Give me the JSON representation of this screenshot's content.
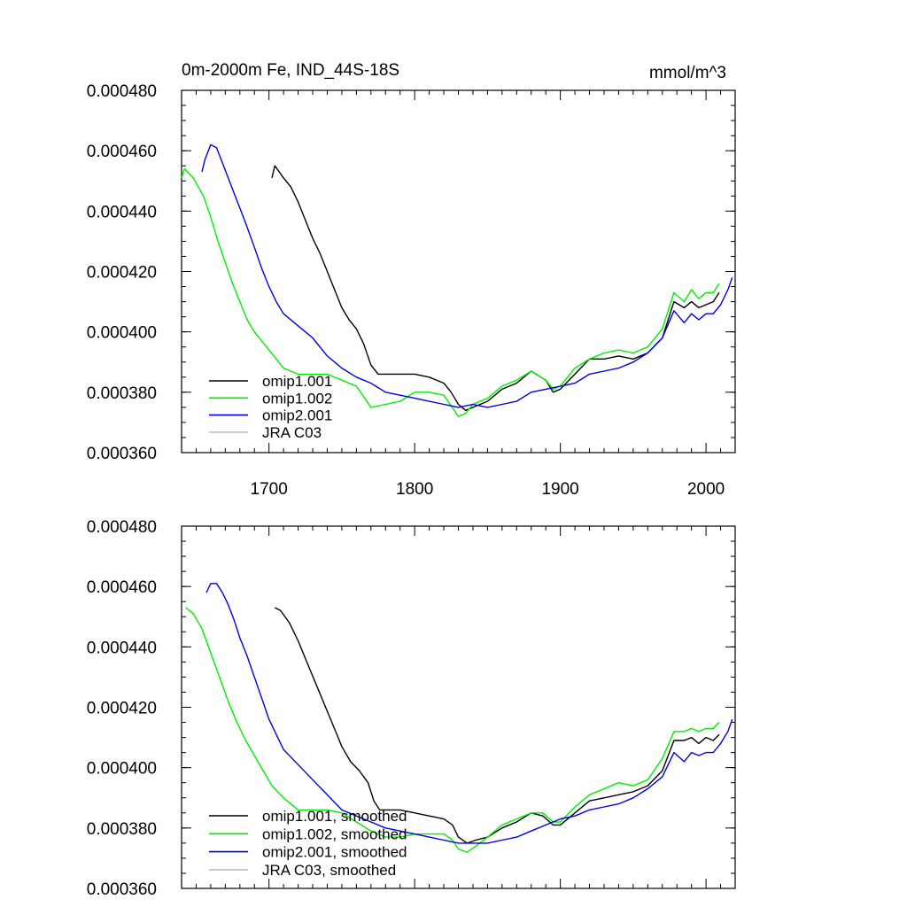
{
  "colors": {
    "omip1_001": "#000000",
    "omip1_002": "#00ee00",
    "omip2_001": "#0000dd",
    "jra_c03": "#bbbbbb"
  },
  "chart_data": [
    {
      "type": "line",
      "title": "0m-2000m Fe, IND_44S-18S",
      "units": "mmol/m^3",
      "xlabel": "",
      "ylabel": "",
      "xlim": [
        1640,
        2020
      ],
      "ylim": [
        0.00036,
        0.00048
      ],
      "yticks": [
        "0.000360",
        "0.000380",
        "0.000400",
        "0.000420",
        "0.000440",
        "0.000460",
        "0.000480"
      ],
      "xticks": [
        "1700",
        "1800",
        "1900",
        "2000"
      ],
      "legend_position": "bottom-left",
      "series": [
        {
          "name": "omip1.001",
          "color_key": "omip1_001",
          "x": [
            1702,
            1704,
            1710,
            1715,
            1720,
            1725,
            1730,
            1735,
            1740,
            1745,
            1750,
            1755,
            1760,
            1765,
            1770,
            1775,
            1780,
            1790,
            1800,
            1810,
            1820,
            1825,
            1830,
            1835,
            1840,
            1850,
            1860,
            1870,
            1880,
            1890,
            1895,
            1900,
            1910,
            1920,
            1930,
            1940,
            1950,
            1960,
            1970,
            1978,
            1985,
            1990,
            1995,
            2000,
            2005,
            2009
          ],
          "y": [
            0.000451,
            0.000455,
            0.000451,
            0.000448,
            0.000443,
            0.000437,
            0.000431,
            0.000426,
            0.00042,
            0.000414,
            0.000408,
            0.000404,
            0.000401,
            0.000396,
            0.000389,
            0.000386,
            0.000386,
            0.000386,
            0.000386,
            0.000385,
            0.000383,
            0.00038,
            0.000376,
            0.000374,
            0.000375,
            0.000377,
            0.000381,
            0.000383,
            0.000387,
            0.000384,
            0.00038,
            0.000381,
            0.000386,
            0.000391,
            0.000391,
            0.000392,
            0.000391,
            0.000393,
            0.000398,
            0.00041,
            0.000408,
            0.00041,
            0.000408,
            0.000409,
            0.00041,
            0.000413
          ]
        },
        {
          "name": "omip1.002",
          "color_key": "omip1_002",
          "x": [
            1640,
            1642,
            1648,
            1655,
            1660,
            1665,
            1670,
            1675,
            1680,
            1685,
            1690,
            1700,
            1710,
            1720,
            1730,
            1740,
            1750,
            1760,
            1770,
            1780,
            1790,
            1800,
            1810,
            1820,
            1830,
            1835,
            1840,
            1850,
            1860,
            1870,
            1880,
            1890,
            1895,
            1900,
            1910,
            1920,
            1930,
            1940,
            1950,
            1960,
            1970,
            1978,
            1985,
            1990,
            1995,
            2000,
            2005,
            2009
          ],
          "y": [
            0.000451,
            0.000454,
            0.000451,
            0.000445,
            0.000438,
            0.00043,
            0.000423,
            0.000416,
            0.00041,
            0.000404,
            0.0004,
            0.000394,
            0.000388,
            0.000386,
            0.000386,
            0.000386,
            0.000384,
            0.000382,
            0.000375,
            0.000376,
            0.000377,
            0.00038,
            0.00038,
            0.000379,
            0.000372,
            0.000373,
            0.000376,
            0.000378,
            0.000382,
            0.000384,
            0.000387,
            0.000384,
            0.000381,
            0.000382,
            0.000388,
            0.000391,
            0.000393,
            0.000394,
            0.000393,
            0.000395,
            0.000401,
            0.000413,
            0.00041,
            0.000414,
            0.000411,
            0.000413,
            0.000413,
            0.000416
          ]
        },
        {
          "name": "omip2.001",
          "color_key": "omip2_001",
          "x": [
            1654,
            1656,
            1660,
            1664,
            1668,
            1672,
            1676,
            1680,
            1684,
            1690,
            1695,
            1700,
            1705,
            1710,
            1720,
            1730,
            1740,
            1750,
            1760,
            1770,
            1780,
            1790,
            1800,
            1810,
            1820,
            1830,
            1840,
            1850,
            1860,
            1870,
            1880,
            1890,
            1900,
            1910,
            1920,
            1930,
            1940,
            1950,
            1960,
            1970,
            1978,
            1985,
            1990,
            1995,
            2000,
            2005,
            2010,
            2015,
            2018
          ],
          "y": [
            0.000453,
            0.000457,
            0.000462,
            0.000461,
            0.000456,
            0.000451,
            0.000446,
            0.000441,
            0.000436,
            0.000428,
            0.000421,
            0.000415,
            0.00041,
            0.000406,
            0.000402,
            0.000398,
            0.000392,
            0.000388,
            0.000385,
            0.000383,
            0.00038,
            0.000379,
            0.000378,
            0.000377,
            0.000376,
            0.000375,
            0.000376,
            0.000375,
            0.000376,
            0.000377,
            0.00038,
            0.000381,
            0.000382,
            0.000383,
            0.000386,
            0.000387,
            0.000388,
            0.00039,
            0.000393,
            0.000398,
            0.000407,
            0.000403,
            0.000406,
            0.000404,
            0.000406,
            0.000406,
            0.000409,
            0.000414,
            0.000418
          ]
        },
        {
          "name": "JRA C03",
          "color_key": "jra_c03",
          "x": [],
          "y": []
        }
      ]
    },
    {
      "type": "line",
      "title": "",
      "xlim": [
        1640,
        2020
      ],
      "ylim": [
        0.00036,
        0.00048
      ],
      "yticks": [
        "0.000360",
        "0.000380",
        "0.000400",
        "0.000420",
        "0.000440",
        "0.000460",
        "0.000480"
      ],
      "legend_position": "bottom-left",
      "series": [
        {
          "name": "omip1.001, smoothed",
          "color_key": "omip1_001",
          "x": [
            1704,
            1708,
            1714,
            1720,
            1726,
            1732,
            1738,
            1744,
            1750,
            1756,
            1762,
            1768,
            1772,
            1776,
            1782,
            1790,
            1800,
            1810,
            1820,
            1826,
            1830,
            1836,
            1842,
            1850,
            1860,
            1870,
            1880,
            1888,
            1895,
            1900,
            1910,
            1920,
            1930,
            1940,
            1950,
            1960,
            1970,
            1978,
            1985,
            1990,
            1995,
            2000,
            2005,
            2009
          ],
          "y": [
            0.000453,
            0.000452,
            0.000448,
            0.000442,
            0.000435,
            0.000428,
            0.000421,
            0.000414,
            0.000407,
            0.000402,
            0.000399,
            0.000395,
            0.000389,
            0.000386,
            0.000386,
            0.000386,
            0.000385,
            0.000384,
            0.000383,
            0.000381,
            0.000377,
            0.000375,
            0.000376,
            0.000377,
            0.00038,
            0.000382,
            0.000385,
            0.000384,
            0.000381,
            0.000381,
            0.000385,
            0.000389,
            0.00039,
            0.000391,
            0.000392,
            0.000394,
            0.000399,
            0.000409,
            0.000409,
            0.00041,
            0.000408,
            0.00041,
            0.000409,
            0.000411
          ]
        },
        {
          "name": "omip1.002, smoothed",
          "color_key": "omip1_002",
          "x": [
            1643,
            1648,
            1654,
            1660,
            1666,
            1672,
            1678,
            1684,
            1690,
            1696,
            1702,
            1710,
            1720,
            1730,
            1740,
            1750,
            1760,
            1770,
            1780,
            1790,
            1800,
            1810,
            1820,
            1826,
            1830,
            1836,
            1842,
            1850,
            1860,
            1870,
            1880,
            1888,
            1895,
            1900,
            1910,
            1920,
            1930,
            1940,
            1950,
            1960,
            1970,
            1978,
            1985,
            1990,
            1995,
            2000,
            2005,
            2009
          ],
          "y": [
            0.000453,
            0.000451,
            0.000446,
            0.000438,
            0.00043,
            0.000422,
            0.000415,
            0.000409,
            0.000404,
            0.000399,
            0.000394,
            0.00039,
            0.000386,
            0.000386,
            0.000386,
            0.000385,
            0.000382,
            0.000379,
            0.000377,
            0.000377,
            0.000378,
            0.000378,
            0.000378,
            0.000376,
            0.000373,
            0.000372,
            0.000374,
            0.000377,
            0.000381,
            0.000383,
            0.000385,
            0.000385,
            0.000382,
            0.000382,
            0.000387,
            0.000391,
            0.000393,
            0.000395,
            0.000394,
            0.000396,
            0.000403,
            0.000412,
            0.000412,
            0.000413,
            0.000412,
            0.000413,
            0.000413,
            0.000415
          ]
        },
        {
          "name": "omip2.001, smoothed",
          "color_key": "omip2_001",
          "x": [
            1657,
            1660,
            1664,
            1668,
            1672,
            1676,
            1680,
            1685,
            1690,
            1695,
            1700,
            1705,
            1710,
            1720,
            1730,
            1740,
            1750,
            1760,
            1770,
            1780,
            1790,
            1800,
            1810,
            1820,
            1830,
            1840,
            1850,
            1860,
            1870,
            1880,
            1890,
            1900,
            1910,
            1920,
            1930,
            1940,
            1950,
            1960,
            1970,
            1978,
            1985,
            1990,
            1995,
            2000,
            2005,
            2010,
            2015,
            2018
          ],
          "y": [
            0.000458,
            0.000461,
            0.000461,
            0.000458,
            0.000454,
            0.000449,
            0.000443,
            0.000437,
            0.00043,
            0.000423,
            0.000416,
            0.000411,
            0.000406,
            0.000401,
            0.000396,
            0.000391,
            0.000386,
            0.000384,
            0.000382,
            0.00038,
            0.000379,
            0.000378,
            0.000377,
            0.000376,
            0.000375,
            0.000375,
            0.000375,
            0.000376,
            0.000377,
            0.000379,
            0.000381,
            0.000383,
            0.000384,
            0.000386,
            0.000387,
            0.000388,
            0.00039,
            0.000393,
            0.000397,
            0.000405,
            0.000402,
            0.000405,
            0.000404,
            0.000405,
            0.000405,
            0.000408,
            0.000412,
            0.000416
          ]
        },
        {
          "name": "JRA C03, smoothed",
          "color_key": "jra_c03",
          "x": [],
          "y": []
        }
      ]
    }
  ]
}
